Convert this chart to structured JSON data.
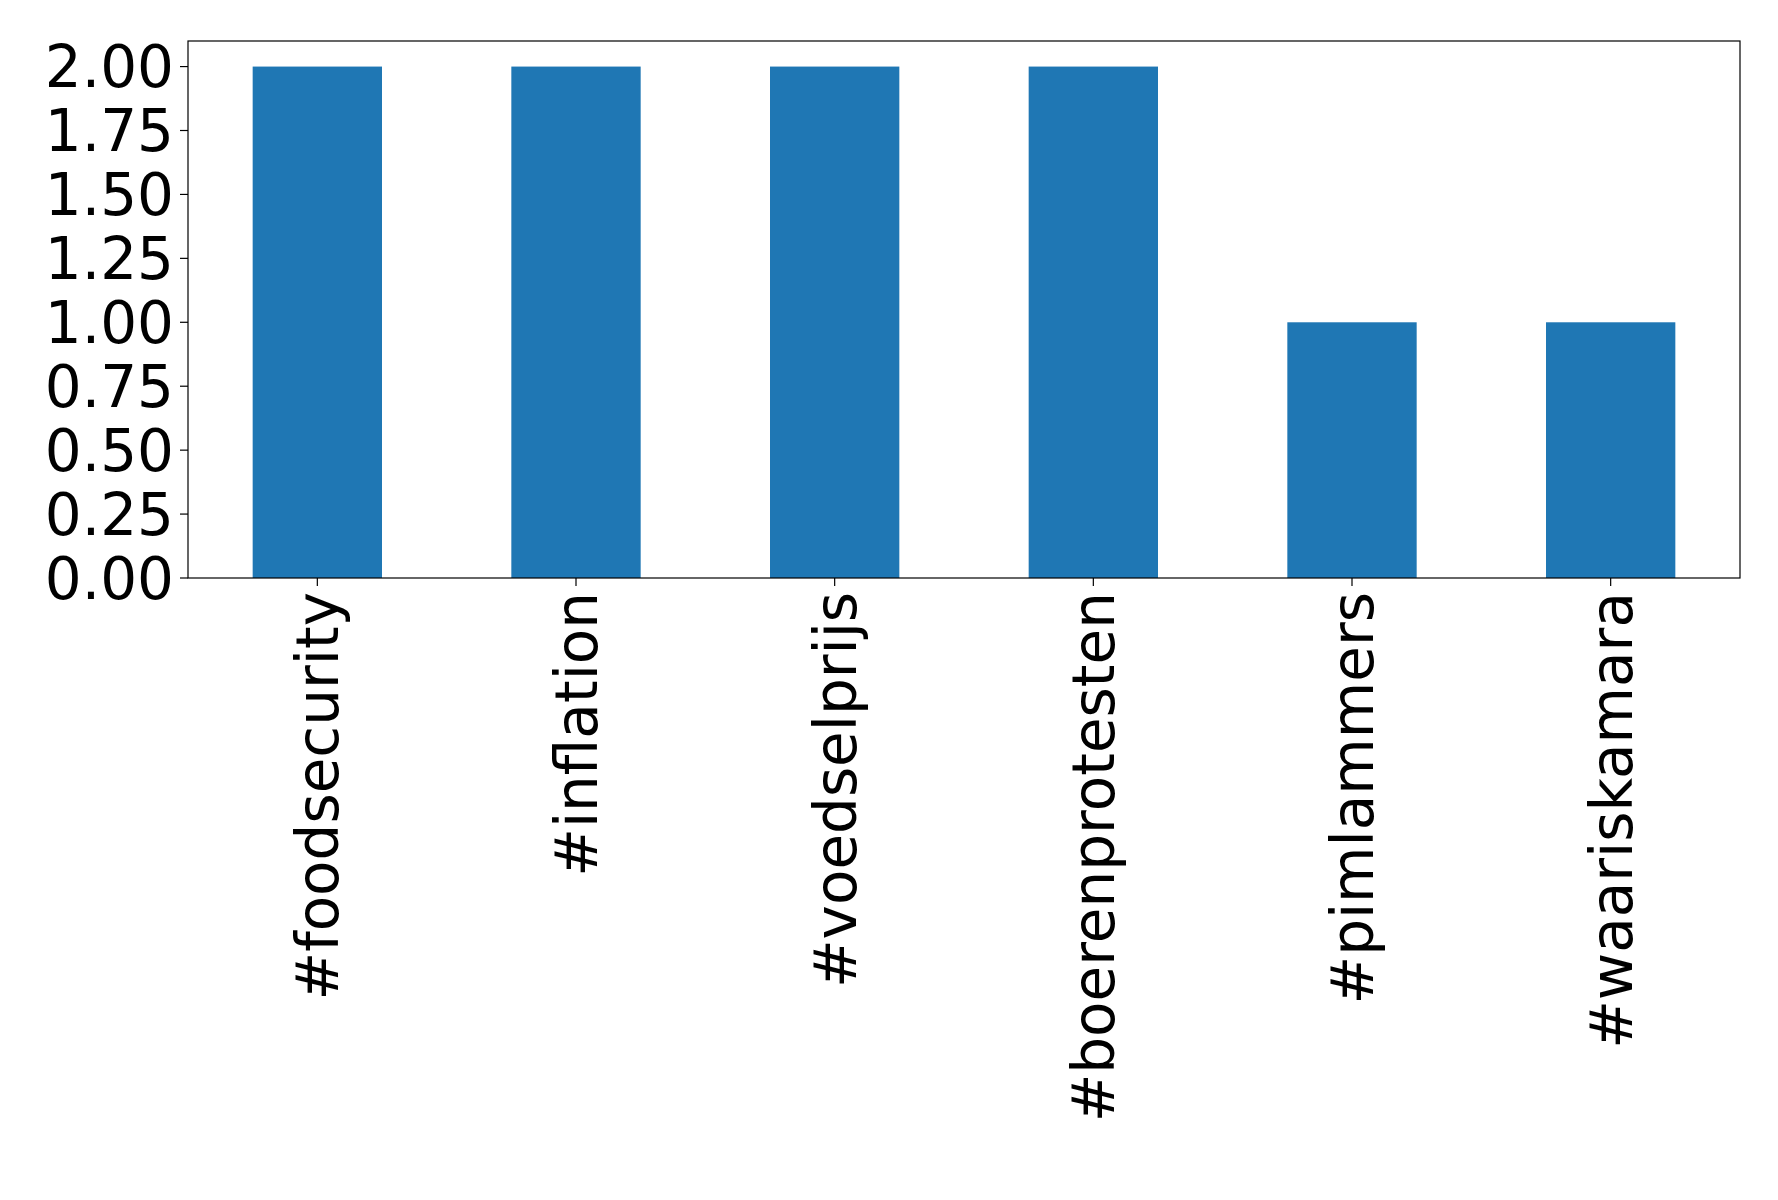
{
  "chart_data": {
    "type": "bar",
    "categories": [
      "#foodsecurity",
      "#inflation",
      "#voedselprijs",
      "#boerenprotesten",
      "#pimlammers",
      "#waariskamara"
    ],
    "values": [
      2,
      2,
      2,
      2,
      1,
      1
    ],
    "color": "#1f77b4",
    "ylim": [
      0,
      2.1
    ],
    "yticks": [
      {
        "value": 0,
        "label": "0.00"
      },
      {
        "value": 0.25,
        "label": "0.25"
      },
      {
        "value": 0.5,
        "label": "0.50"
      },
      {
        "value": 0.75,
        "label": "0.75"
      },
      {
        "value": 1,
        "label": "1.00"
      },
      {
        "value": 1.25,
        "label": "1.25"
      },
      {
        "value": 1.5,
        "label": "1.50"
      },
      {
        "value": 1.75,
        "label": "1.75"
      },
      {
        "value": 2,
        "label": "2.00"
      }
    ],
    "grid": false
  }
}
